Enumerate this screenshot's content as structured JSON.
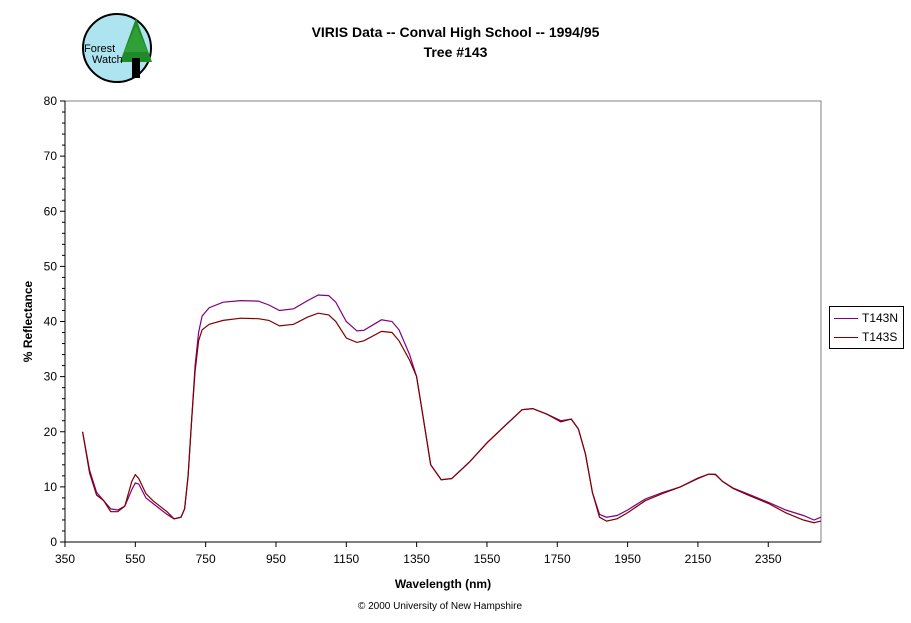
{
  "logo": {
    "text": "Forest Watch"
  },
  "copyright": "© 2000 University of New Hampshire",
  "chart_data": {
    "type": "line",
    "title": "VIRIS Data -- Conval High School -- 1994/95",
    "subtitle": "Tree #143",
    "xlabel": "Wavelength (nm)",
    "ylabel": "% Reflectance",
    "xlim": [
      350,
      2500
    ],
    "ylim": [
      0,
      80
    ],
    "xticks": [
      350,
      550,
      750,
      950,
      1150,
      1350,
      1550,
      1750,
      1950,
      2150,
      2350
    ],
    "yticks": [
      0,
      10,
      20,
      30,
      40,
      50,
      60,
      70,
      80
    ],
    "grid": false,
    "legend_position": "right",
    "series": [
      {
        "name": "T143N",
        "color": "#800080",
        "points": [
          [
            400,
            20
          ],
          [
            420,
            13
          ],
          [
            440,
            9
          ],
          [
            460,
            7.5
          ],
          [
            480,
            6
          ],
          [
            500,
            5.8
          ],
          [
            520,
            6.5
          ],
          [
            540,
            9.5
          ],
          [
            550,
            10.7
          ],
          [
            560,
            10.5
          ],
          [
            580,
            8
          ],
          [
            600,
            7
          ],
          [
            620,
            6
          ],
          [
            640,
            5
          ],
          [
            660,
            4.2
          ],
          [
            680,
            4.5
          ],
          [
            690,
            6
          ],
          [
            700,
            12
          ],
          [
            710,
            22
          ],
          [
            720,
            32
          ],
          [
            730,
            38
          ],
          [
            740,
            41
          ],
          [
            760,
            42.5
          ],
          [
            800,
            43.5
          ],
          [
            850,
            43.8
          ],
          [
            900,
            43.7
          ],
          [
            930,
            43
          ],
          [
            960,
            42
          ],
          [
            1000,
            42.3
          ],
          [
            1040,
            43.8
          ],
          [
            1070,
            44.8
          ],
          [
            1100,
            44.7
          ],
          [
            1120,
            43.5
          ],
          [
            1150,
            40
          ],
          [
            1180,
            38.3
          ],
          [
            1200,
            38.4
          ],
          [
            1250,
            40.3
          ],
          [
            1280,
            40
          ],
          [
            1300,
            38.5
          ],
          [
            1330,
            34
          ],
          [
            1350,
            30
          ],
          [
            1370,
            22
          ],
          [
            1390,
            14
          ],
          [
            1420,
            11.3
          ],
          [
            1450,
            11.5
          ],
          [
            1500,
            14.5
          ],
          [
            1550,
            18
          ],
          [
            1600,
            21
          ],
          [
            1650,
            24
          ],
          [
            1680,
            24.2
          ],
          [
            1720,
            23.2
          ],
          [
            1760,
            22
          ],
          [
            1790,
            22.3
          ],
          [
            1810,
            20.5
          ],
          [
            1830,
            16
          ],
          [
            1850,
            9
          ],
          [
            1870,
            5
          ],
          [
            1890,
            4.5
          ],
          [
            1920,
            4.8
          ],
          [
            1950,
            5.8
          ],
          [
            2000,
            7.8
          ],
          [
            2050,
            9
          ],
          [
            2100,
            10
          ],
          [
            2150,
            11.6
          ],
          [
            2180,
            12.3
          ],
          [
            2200,
            12.3
          ],
          [
            2220,
            11
          ],
          [
            2250,
            9.8
          ],
          [
            2300,
            8.5
          ],
          [
            2350,
            7.2
          ],
          [
            2400,
            5.8
          ],
          [
            2450,
            4.8
          ],
          [
            2480,
            4
          ],
          [
            2500,
            4.5
          ]
        ]
      },
      {
        "name": "T143S",
        "color": "#800000",
        "points": [
          [
            400,
            20
          ],
          [
            420,
            12.5
          ],
          [
            440,
            8.5
          ],
          [
            460,
            7.5
          ],
          [
            480,
            5.5
          ],
          [
            500,
            5.5
          ],
          [
            520,
            6.5
          ],
          [
            540,
            11
          ],
          [
            550,
            12.2
          ],
          [
            560,
            11.5
          ],
          [
            580,
            8.8
          ],
          [
            600,
            7.5
          ],
          [
            620,
            6.5
          ],
          [
            640,
            5.5
          ],
          [
            660,
            4.2
          ],
          [
            680,
            4.5
          ],
          [
            690,
            6
          ],
          [
            700,
            12
          ],
          [
            710,
            22
          ],
          [
            720,
            31
          ],
          [
            730,
            36.5
          ],
          [
            740,
            38.5
          ],
          [
            760,
            39.5
          ],
          [
            800,
            40.2
          ],
          [
            850,
            40.6
          ],
          [
            900,
            40.5
          ],
          [
            930,
            40.2
          ],
          [
            960,
            39.2
          ],
          [
            1000,
            39.5
          ],
          [
            1040,
            40.8
          ],
          [
            1070,
            41.5
          ],
          [
            1100,
            41.2
          ],
          [
            1120,
            40
          ],
          [
            1150,
            37
          ],
          [
            1180,
            36.2
          ],
          [
            1200,
            36.5
          ],
          [
            1250,
            38.2
          ],
          [
            1280,
            38
          ],
          [
            1300,
            36.5
          ],
          [
            1330,
            33
          ],
          [
            1350,
            30
          ],
          [
            1370,
            22
          ],
          [
            1390,
            14
          ],
          [
            1420,
            11.3
          ],
          [
            1450,
            11.5
          ],
          [
            1500,
            14.5
          ],
          [
            1550,
            18
          ],
          [
            1600,
            21
          ],
          [
            1650,
            24
          ],
          [
            1680,
            24.2
          ],
          [
            1720,
            23.2
          ],
          [
            1760,
            21.8
          ],
          [
            1790,
            22.3
          ],
          [
            1810,
            20.5
          ],
          [
            1830,
            16
          ],
          [
            1850,
            9
          ],
          [
            1870,
            4.5
          ],
          [
            1890,
            3.8
          ],
          [
            1920,
            4.2
          ],
          [
            1950,
            5.3
          ],
          [
            2000,
            7.5
          ],
          [
            2050,
            8.8
          ],
          [
            2100,
            10
          ],
          [
            2150,
            11.5
          ],
          [
            2180,
            12.3
          ],
          [
            2200,
            12.2
          ],
          [
            2220,
            11
          ],
          [
            2250,
            9.7
          ],
          [
            2300,
            8.3
          ],
          [
            2350,
            7
          ],
          [
            2400,
            5.3
          ],
          [
            2450,
            4
          ],
          [
            2480,
            3.5
          ],
          [
            2500,
            3.8
          ]
        ]
      }
    ]
  }
}
